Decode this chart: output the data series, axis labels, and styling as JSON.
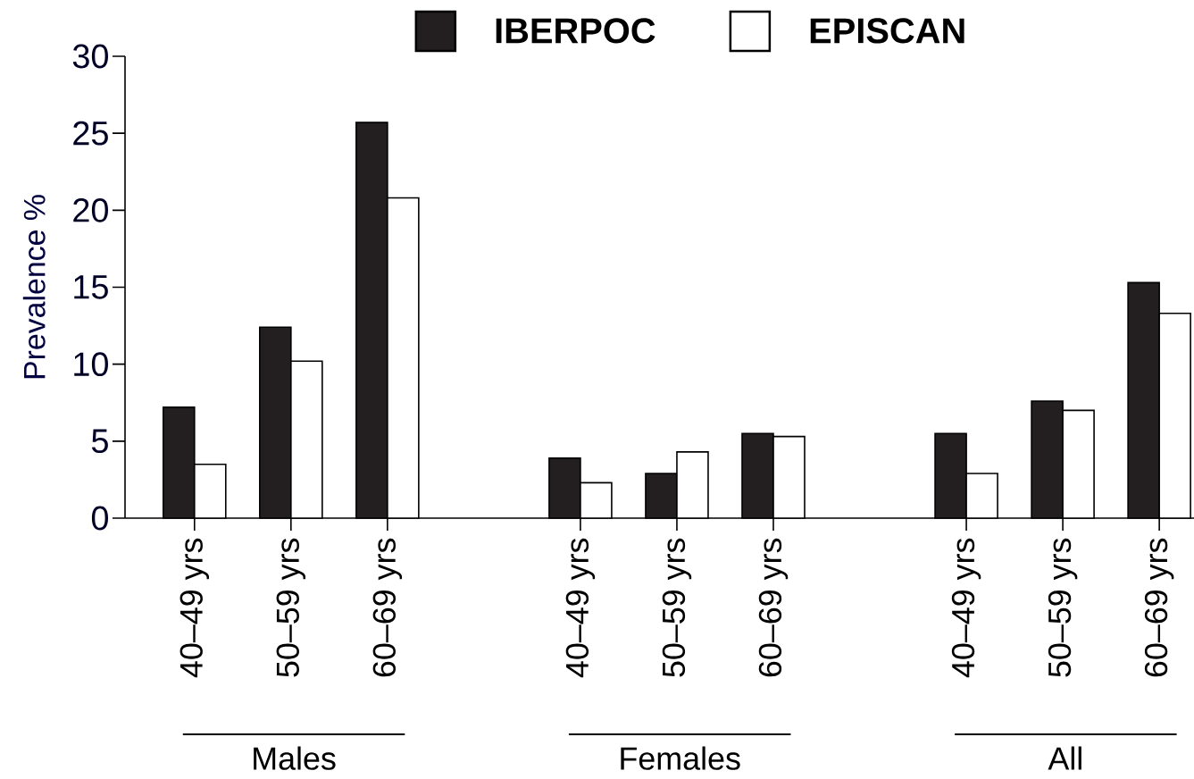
{
  "chart_data": {
    "type": "bar",
    "ylabel": "Prevalence %",
    "categories": [
      "40–49 yrs",
      "50–59 yrs",
      "60–69 yrs",
      null,
      "40–49 yrs",
      "50–59 yrs",
      "60–69 yrs",
      null,
      "40–49 yrs",
      "50–59 yrs",
      "60–69 yrs"
    ],
    "series": [
      {
        "name": "IBERPOC",
        "color": "#231f20",
        "values": [
          7.2,
          12.4,
          25.7,
          null,
          3.9,
          2.9,
          5.5,
          null,
          5.5,
          7.6,
          15.3
        ]
      },
      {
        "name": "EPISCAN",
        "color": "#ffffff",
        "values": [
          3.5,
          10.2,
          20.8,
          null,
          2.3,
          4.3,
          5.3,
          null,
          2.9,
          7.0,
          13.3
        ]
      }
    ],
    "ylim": [
      0,
      30
    ],
    "yticks": [
      0,
      5,
      10,
      15,
      20,
      25,
      30
    ],
    "annotations": [
      "Males",
      "Females",
      "All"
    ],
    "legend": "top"
  }
}
